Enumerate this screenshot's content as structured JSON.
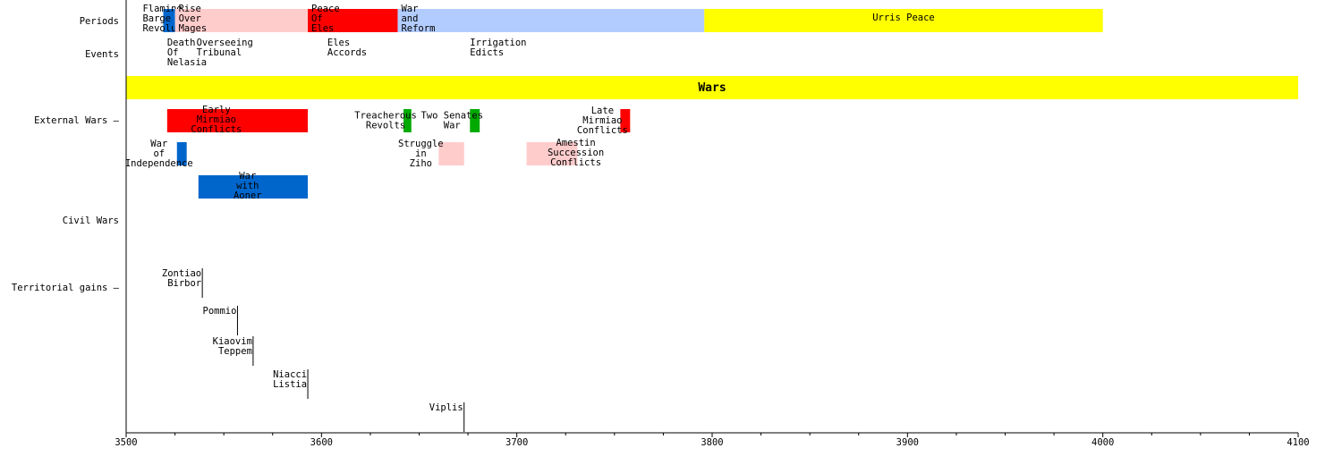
{
  "chart_data": {
    "type": "timeline",
    "xlim": [
      3500,
      4100
    ],
    "x_ticks": [
      3500,
      3600,
      3700,
      3800,
      3900,
      4000,
      4100
    ],
    "rows": [
      "Periods",
      "Events",
      "External Wars –",
      "Civil Wars",
      "Territorial gains –"
    ],
    "banner": {
      "label": "Wars",
      "start": 3500,
      "end": 4100,
      "color": "#ffff00"
    },
    "periods": [
      {
        "label": "Flaming\nBarge\nRevolution",
        "start": 3519,
        "end": 3525,
        "color": "#0066cc"
      },
      {
        "label": "Rise\nOver\nMages",
        "start": 3525,
        "end": 3593,
        "color": "#ffcccc"
      },
      {
        "label": "Peace\nOf\nEles",
        "start": 3593,
        "end": 3639,
        "color": "#ff0000"
      },
      {
        "label": "War\nand\nReform",
        "start": 3639,
        "end": 3796,
        "color": "#b3ccff"
      },
      {
        "label": "Urris Peace",
        "start": 3796,
        "end": 4000,
        "color": "#ffff00"
      }
    ],
    "events": [
      {
        "label": "Death\nOf\nNelasia",
        "x": 3521
      },
      {
        "label": "Overseeing\nTribunal",
        "x": 3536
      },
      {
        "label": "Eles\nAccords",
        "x": 3603
      },
      {
        "label": "Irrigation\nEdicts",
        "x": 3676
      }
    ],
    "external_wars": [
      {
        "label": "Early\nMirmiao\nConflicts",
        "start": 3521,
        "end": 3593,
        "lane": 0,
        "color": "#ff0000"
      },
      {
        "label": "Treacherous\nRevolts",
        "start": 3642,
        "end": 3646,
        "lane": 0,
        "color": "#00aa00"
      },
      {
        "label": "Two Senates\nWar",
        "start": 3676,
        "end": 3681,
        "lane": 0,
        "color": "#00aa00"
      },
      {
        "label": "Late\nMirmiao\nConflicts",
        "start": 3753,
        "end": 3758,
        "lane": 0,
        "color": "#ff0000"
      },
      {
        "label": "War\nof\nIndependence",
        "start": 3526,
        "end": 3531,
        "lane": 1,
        "color": "#0066cc"
      },
      {
        "label": "Struggle\nin\nZiho",
        "start": 3660,
        "end": 3673,
        "lane": 1,
        "color": "#ffcccc"
      },
      {
        "label": "Amestin\nSuccession\nConflicts",
        "start": 3705,
        "end": 3731,
        "lane": 1,
        "color": "#ffcccc"
      },
      {
        "label": "War\nwith\nAoner",
        "start": 3537,
        "end": 3593,
        "lane": 2,
        "color": "#0066cc"
      }
    ],
    "territorial_gains": [
      {
        "label": "Zontiao\nBirbor",
        "x": 3539
      },
      {
        "label": "Pommio",
        "x": 3557
      },
      {
        "label": "Kiaovim\nTeppem",
        "x": 3565
      },
      {
        "label": "Niacci\nListia",
        "x": 3593
      },
      {
        "label": "Viplis",
        "x": 3673
      }
    ]
  }
}
